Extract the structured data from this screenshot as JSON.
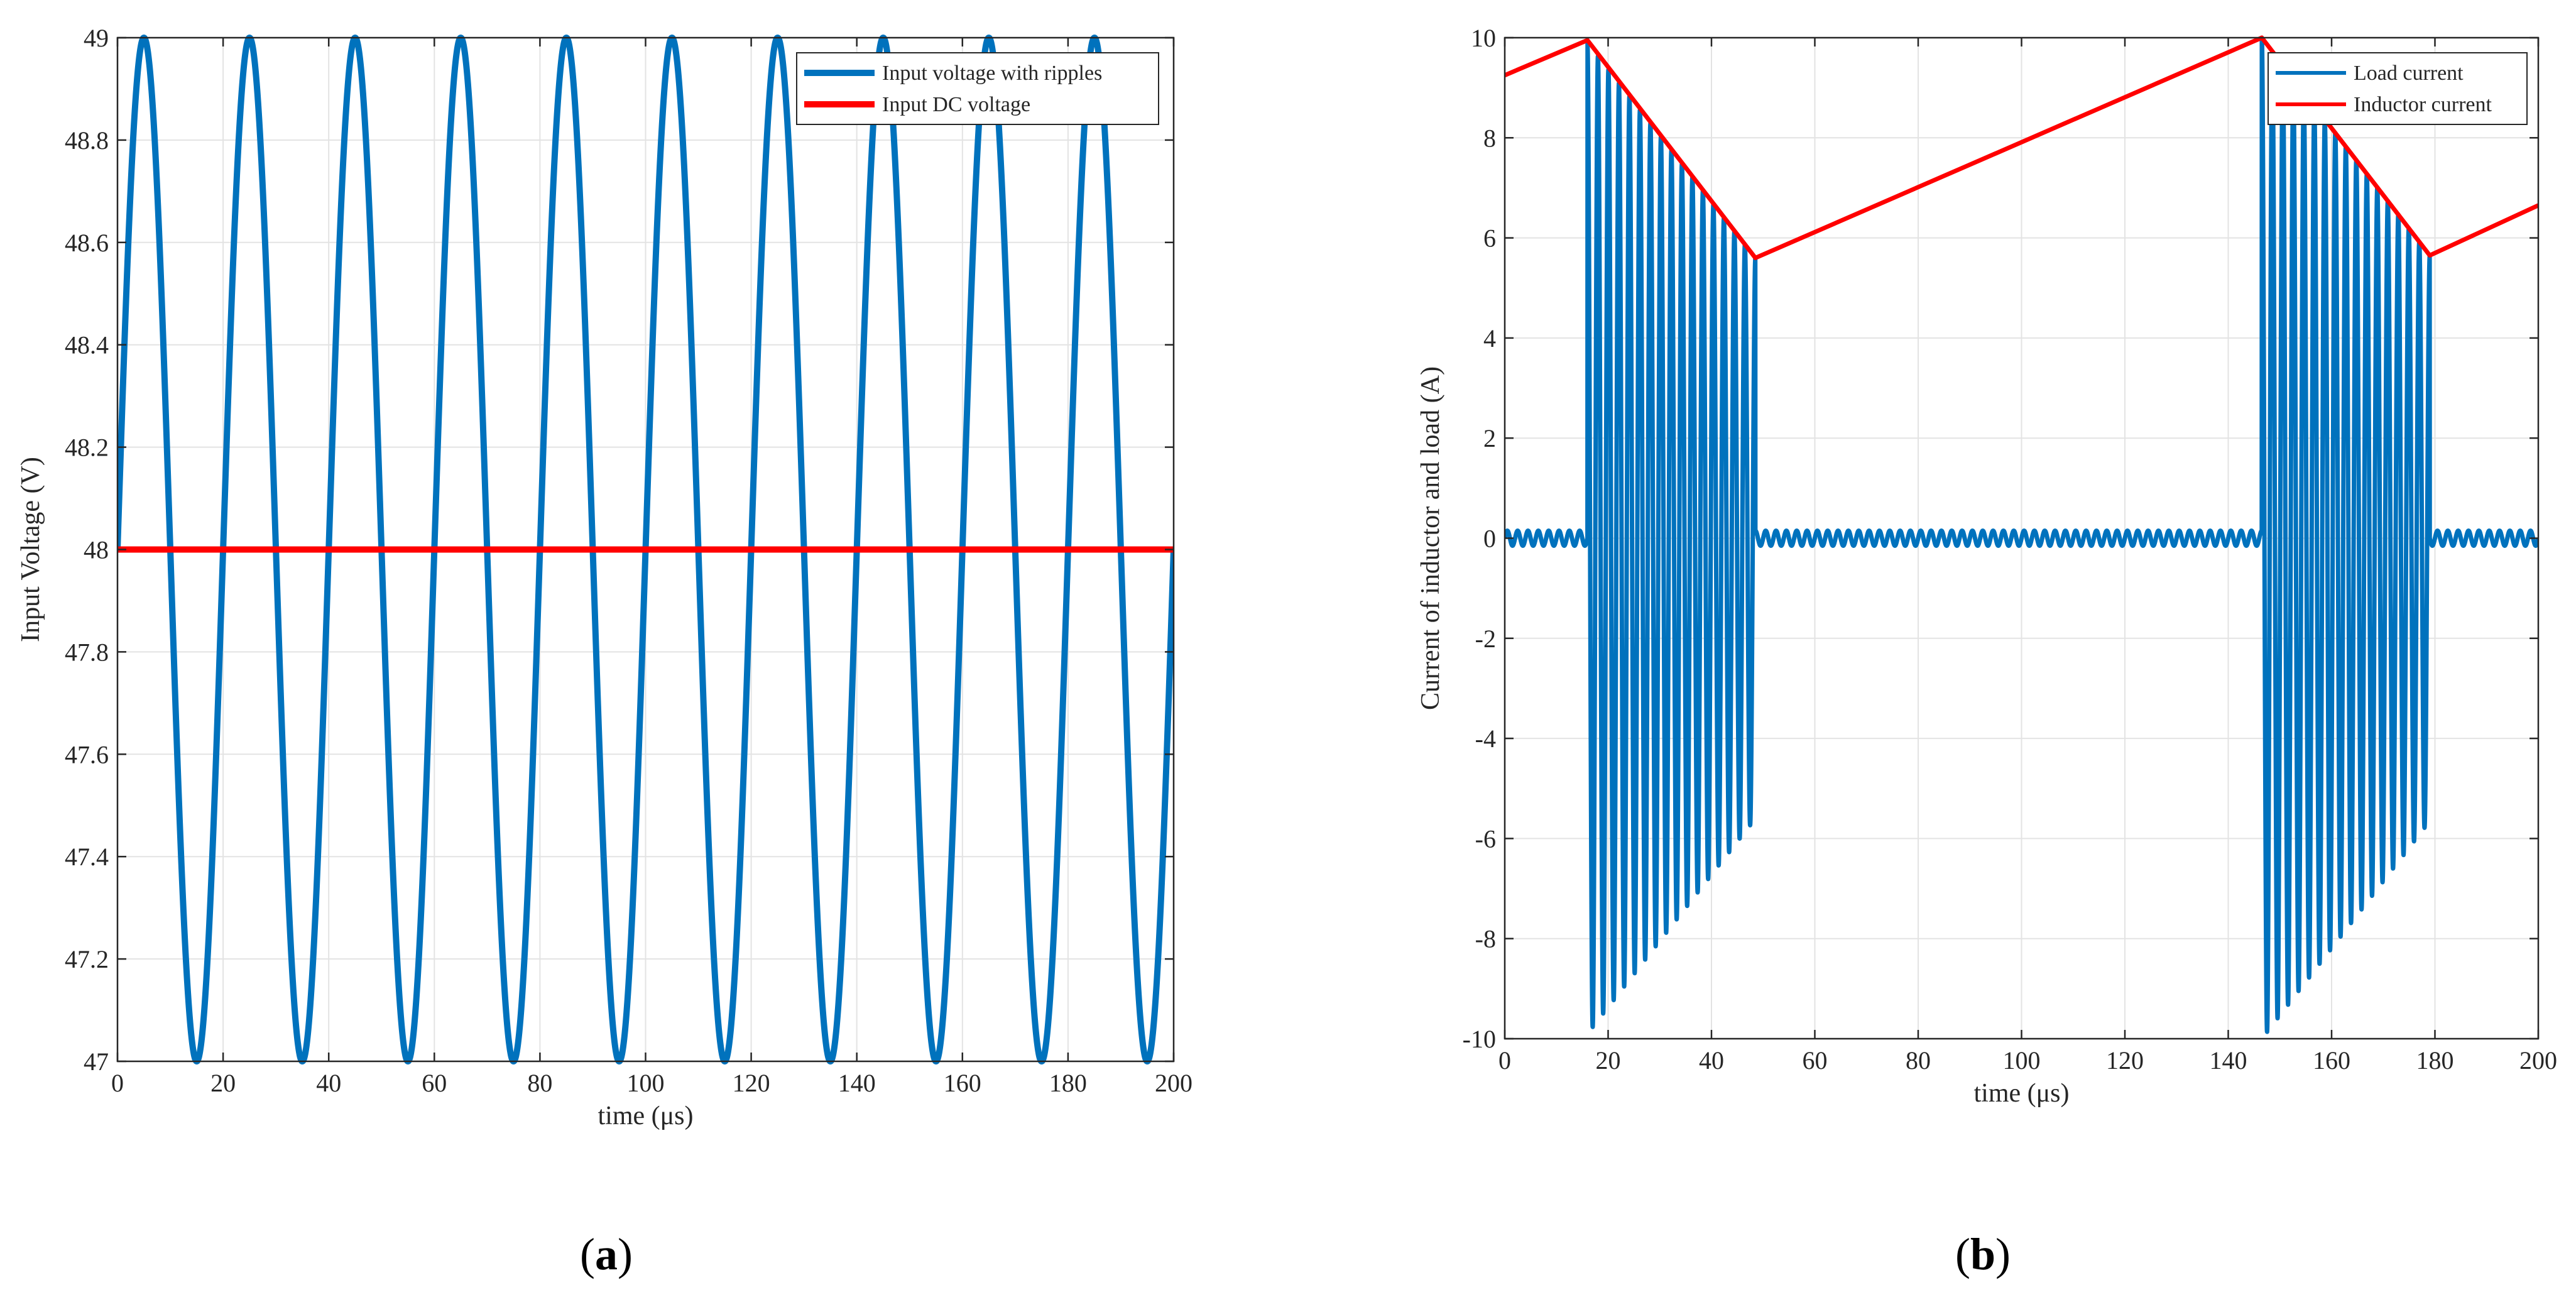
{
  "chart_data": [
    {
      "type": "line",
      "panel_label": "a",
      "xlabel": "time (μs)",
      "ylabel": "Input Voltage (V)",
      "xlim": [
        0,
        200
      ],
      "ylim": [
        47,
        49
      ],
      "xticks": [
        0,
        20,
        40,
        60,
        80,
        100,
        120,
        140,
        160,
        180,
        200
      ],
      "yticks": [
        47,
        47.2,
        47.4,
        47.6,
        47.8,
        48,
        48.2,
        48.4,
        48.6,
        48.8,
        49
      ],
      "ytick_labels": [
        "47",
        "47.2",
        "47.4",
        "47.6",
        "47.8",
        "48",
        "48.2",
        "48.4",
        "48.6",
        "48.8",
        "49"
      ],
      "grid": true,
      "legend_position": "top-right",
      "series": [
        {
          "name": "Input voltage with ripples",
          "color": "#0072bd",
          "function": "sine",
          "offset": 48,
          "amplitude": 1,
          "period": 20,
          "x_range": [
            0,
            200
          ]
        },
        {
          "name": "Input DC voltage",
          "color": "#ff0000",
          "x": [
            0,
            200
          ],
          "y": [
            48,
            48
          ]
        }
      ]
    },
    {
      "type": "line",
      "panel_label": "b",
      "xlabel": "time (μs)",
      "ylabel": "Current of inductor and load (A)",
      "xlim": [
        0,
        200
      ],
      "ylim": [
        -10,
        10
      ],
      "xticks": [
        0,
        20,
        40,
        60,
        80,
        100,
        120,
        140,
        160,
        180,
        200
      ],
      "yticks": [
        -10,
        -8,
        -6,
        -4,
        -2,
        0,
        2,
        4,
        6,
        8,
        10
      ],
      "ytick_labels": [
        "-10",
        "-8",
        "-6",
        "-4",
        "-2",
        "0",
        "2",
        "4",
        "6",
        "8",
        "10"
      ],
      "grid": true,
      "legend_position": "top-right",
      "series": [
        {
          "name": "Load current",
          "color": "#0072bd",
          "ripple_amplitude": 0.15,
          "ripple_period": 2,
          "bursts": [
            {
              "x_start": 16,
              "x_end": 48.5,
              "cycles": 16,
              "start_amplitude": 9.9,
              "end_amplitude": 5.6
            },
            {
              "x_start": 146.5,
              "x_end": 179,
              "cycles": 16,
              "start_amplitude": 10,
              "end_amplitude": 5.65
            }
          ]
        },
        {
          "name": "Inductor current",
          "color": "#ff0000",
          "x": [
            0,
            16,
            48.5,
            146.5,
            179,
            200
          ],
          "y": [
            9.25,
            9.95,
            5.6,
            10,
            5.65,
            6.65
          ]
        }
      ]
    }
  ]
}
